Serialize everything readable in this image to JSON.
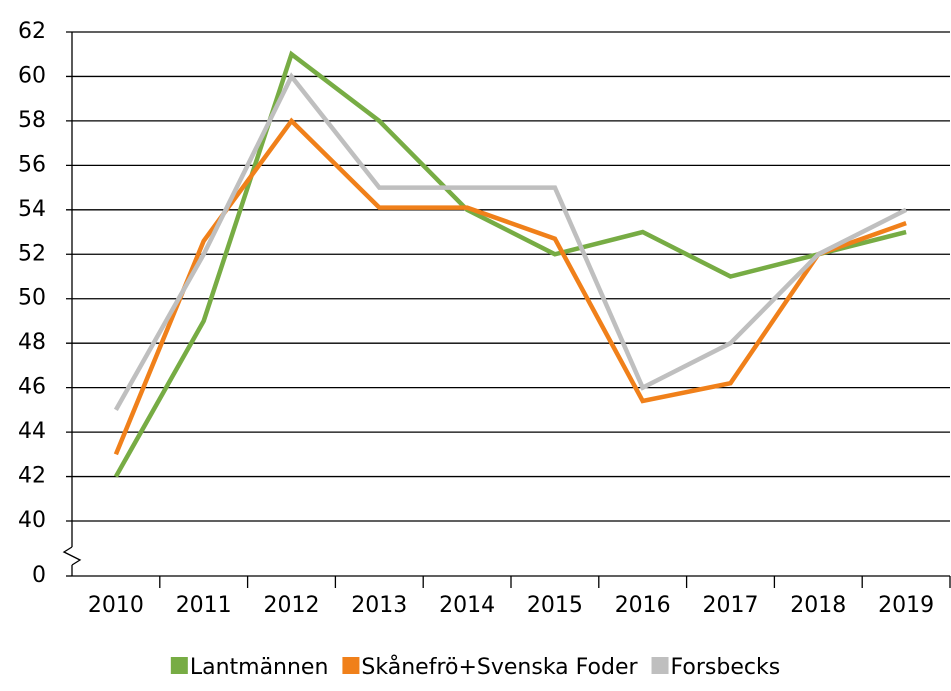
{
  "chart_data": {
    "type": "line",
    "categories": [
      "2010",
      "2011",
      "2012",
      "2013",
      "2014",
      "2015",
      "2016",
      "2017",
      "2018",
      "2019"
    ],
    "series": [
      {
        "name": "Lantmännen",
        "color": "#77ac44",
        "values": [
          42,
          49,
          61,
          58,
          54,
          52,
          53,
          51,
          52,
          53
        ]
      },
      {
        "name": "Skånefrö+Svenska Foder",
        "color": "#f0801a",
        "values": [
          43,
          52.6,
          58,
          54.1,
          54.1,
          52.7,
          45.4,
          46.2,
          52,
          53.4
        ]
      },
      {
        "name": "Forsbecks",
        "color": "#bfbfbf",
        "values": [
          45,
          52,
          60,
          55,
          55,
          55,
          46,
          48,
          52,
          54
        ]
      }
    ],
    "ylim": [
      40,
      62
    ],
    "yticks": [
      0,
      40,
      42,
      44,
      46,
      48,
      50,
      52,
      54,
      56,
      58,
      60,
      62
    ],
    "axis_break": true,
    "grid": true,
    "legend": "bottom"
  }
}
